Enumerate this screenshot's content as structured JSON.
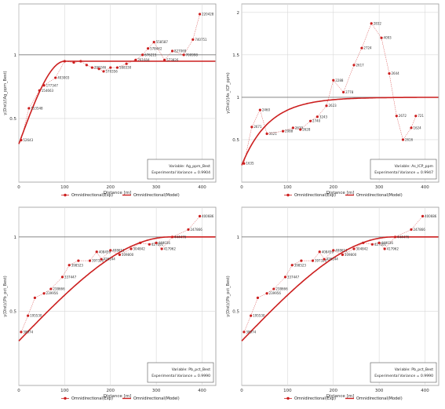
{
  "colors": {
    "series": "#cc1f1f",
    "grid": "#d8d8d8",
    "ref": "#7a7a7a",
    "axis": "#333333"
  },
  "legend": {
    "exp_label": "Omnidirectional(Exp)",
    "model_label": "Omnidirectional(Model)"
  },
  "chart_data": [
    {
      "type": "scatter",
      "xlabel": "Distance [m]",
      "ylabel": "γ(Dist)/(Ag_ppm_Best)",
      "xlim": [
        0,
        430
      ],
      "ylim": [
        0,
        1.4
      ],
      "xticks": [
        0,
        100,
        200,
        300,
        400
      ],
      "yticks": [
        {
          "v": 0.5,
          "label": "0.5"
        },
        {
          "v": 1,
          "label": "1"
        }
      ],
      "sill": 0.95,
      "ref_line": 1.0,
      "model": {
        "nugget": 0.3,
        "sill": 0.95,
        "range": 100,
        "shape": "spherical"
      },
      "info": {
        "variable": "Variable: Ag_ppm_Best",
        "variance": "Experimental Variance = 0.9904"
      },
      "points": [
        {
          "x": 5,
          "y": 0.33,
          "label": "52643"
        },
        {
          "x": 22,
          "y": 0.58,
          "label": "153548"
        },
        {
          "x": 45,
          "y": 0.72,
          "label": "154663"
        },
        {
          "x": 55,
          "y": 0.76,
          "label": "177347"
        },
        {
          "x": 80,
          "y": 0.82,
          "label": "403003"
        },
        {
          "x": 100,
          "y": 0.95,
          "label": ""
        },
        {
          "x": 120,
          "y": 0.94,
          "label": ""
        },
        {
          "x": 135,
          "y": 0.95,
          "label": ""
        },
        {
          "x": 148,
          "y": 0.92,
          "label": ""
        },
        {
          "x": 160,
          "y": 0.9,
          "label": "290246"
        },
        {
          "x": 175,
          "y": 0.89,
          "label": ""
        },
        {
          "x": 185,
          "y": 0.87,
          "label": "570356"
        },
        {
          "x": 200,
          "y": 0.9,
          "label": ""
        },
        {
          "x": 215,
          "y": 0.9,
          "label": "588330"
        },
        {
          "x": 235,
          "y": 0.93,
          "label": ""
        },
        {
          "x": 255,
          "y": 0.96,
          "label": "761604"
        },
        {
          "x": 270,
          "y": 1.0,
          "label": "676215"
        },
        {
          "x": 282,
          "y": 1.05,
          "label": "578442"
        },
        {
          "x": 295,
          "y": 1.1,
          "label": "558587"
        },
        {
          "x": 318,
          "y": 0.96,
          "label": "573826"
        },
        {
          "x": 335,
          "y": 1.03,
          "label": "827069"
        },
        {
          "x": 360,
          "y": 1.0,
          "label": "700998"
        },
        {
          "x": 380,
          "y": 1.12,
          "label": "740751"
        },
        {
          "x": 395,
          "y": 1.32,
          "label": "220428"
        }
      ]
    },
    {
      "type": "scatter",
      "xlabel": "Distance [m]",
      "ylabel": "γ(Dist)/(As_ICP_ppm)",
      "xlim": [
        0,
        430
      ],
      "ylim": [
        0,
        2.1
      ],
      "xticks": [
        0,
        100,
        200,
        300,
        400
      ],
      "yticks": [
        {
          "v": 0.5,
          "label": "0.5"
        },
        {
          "v": 1,
          "label": "1"
        },
        {
          "v": 1.5,
          "label": "1.5"
        },
        {
          "v": 2,
          "label": "2"
        }
      ],
      "sill": 1.0,
      "ref_line": 1.0,
      "model": {
        "nugget": 0.2,
        "sill": 1.0,
        "range": 180,
        "shape": "exponential"
      },
      "info": {
        "variable": "Variable: As_ICP_ppm",
        "variance": "Experimental Variance = 0.9947"
      },
      "points": [
        {
          "x": 5,
          "y": 0.22,
          "label": "1635"
        },
        {
          "x": 22,
          "y": 0.65,
          "label": "2671"
        },
        {
          "x": 40,
          "y": 0.85,
          "label": "2460"
        },
        {
          "x": 55,
          "y": 0.57,
          "label": "3121"
        },
        {
          "x": 90,
          "y": 0.6,
          "label": "2088"
        },
        {
          "x": 112,
          "y": 0.64,
          "label": "2620"
        },
        {
          "x": 128,
          "y": 0.62,
          "label": "2628"
        },
        {
          "x": 150,
          "y": 0.72,
          "label": "2740"
        },
        {
          "x": 165,
          "y": 0.77,
          "label": "3243"
        },
        {
          "x": 185,
          "y": 0.9,
          "label": "2623"
        },
        {
          "x": 200,
          "y": 1.2,
          "label": "2288"
        },
        {
          "x": 222,
          "y": 1.06,
          "label": "2778"
        },
        {
          "x": 245,
          "y": 1.38,
          "label": "2617"
        },
        {
          "x": 262,
          "y": 1.58,
          "label": "2724"
        },
        {
          "x": 283,
          "y": 1.87,
          "label": "2832"
        },
        {
          "x": 305,
          "y": 1.7,
          "label": "4093"
        },
        {
          "x": 322,
          "y": 1.28,
          "label": "2644"
        },
        {
          "x": 338,
          "y": 0.78,
          "label": "2672"
        },
        {
          "x": 352,
          "y": 0.5,
          "label": "2616"
        },
        {
          "x": 370,
          "y": 0.64,
          "label": "1624"
        },
        {
          "x": 380,
          "y": 0.78,
          "label": "721"
        }
      ]
    },
    {
      "type": "scatter",
      "xlabel": "Distance [m]",
      "ylabel": "γ(Dist)/(Pb_pct_Best)",
      "xlim": [
        0,
        430
      ],
      "ylim": [
        0,
        1.2
      ],
      "xticks": [
        0,
        100,
        200,
        300,
        400
      ],
      "yticks": [
        {
          "v": 0.5,
          "label": "0.5"
        },
        {
          "v": 1,
          "label": "1"
        }
      ],
      "sill": 1.0,
      "ref_line": 1.0,
      "model": {
        "nugget": 0.3,
        "sill": 1.0,
        "range": 330,
        "shape": "spherical"
      },
      "info": {
        "variable": "Variable: Pb_pct_Best",
        "variance": "Experimental Variance = 0.9990"
      },
      "points": [
        {
          "x": 5,
          "y": 0.36,
          "label": "38974"
        },
        {
          "x": 20,
          "y": 0.47,
          "label": "195530"
        },
        {
          "x": 35,
          "y": 0.59,
          "label": ""
        },
        {
          "x": 55,
          "y": 0.62,
          "label": "239956"
        },
        {
          "x": 70,
          "y": 0.65,
          "label": "238666"
        },
        {
          "x": 95,
          "y": 0.73,
          "label": "337447"
        },
        {
          "x": 110,
          "y": 0.81,
          "label": "398523"
        },
        {
          "x": 130,
          "y": 0.84,
          "label": ""
        },
        {
          "x": 155,
          "y": 0.84,
          "label": "397320"
        },
        {
          "x": 170,
          "y": 0.9,
          "label": "408459"
        },
        {
          "x": 180,
          "y": 0.85,
          "label": "426144"
        },
        {
          "x": 200,
          "y": 0.91,
          "label": "408611"
        },
        {
          "x": 220,
          "y": 0.88,
          "label": "309800"
        },
        {
          "x": 245,
          "y": 0.92,
          "label": "304842"
        },
        {
          "x": 265,
          "y": 0.96,
          "label": ""
        },
        {
          "x": 285,
          "y": 0.95,
          "label": "427101"
        },
        {
          "x": 300,
          "y": 0.96,
          "label": "449036"
        },
        {
          "x": 312,
          "y": 0.92,
          "label": "417962"
        },
        {
          "x": 335,
          "y": 1.0,
          "label": "444476"
        },
        {
          "x": 370,
          "y": 1.05,
          "label": "247866"
        },
        {
          "x": 395,
          "y": 1.14,
          "label": "400686"
        }
      ]
    },
    {
      "type": "scatter",
      "xlabel": "Distance [m]",
      "ylabel": "γ(Dist)/(Pb_pct_Best)",
      "xlim": [
        0,
        430
      ],
      "ylim": [
        0,
        1.2
      ],
      "xticks": [
        0,
        100,
        200,
        300,
        400
      ],
      "yticks": [
        {
          "v": 0.5,
          "label": "0.5"
        },
        {
          "v": 1,
          "label": "1"
        }
      ],
      "sill": 1.0,
      "ref_line": 1.0,
      "model": {
        "nugget": 0.3,
        "sill": 1.0,
        "range": 330,
        "shape": "spherical"
      },
      "info": {
        "variable": "Variable: Pb_pct_Best",
        "variance": "Experimental Variance = 0.9990"
      },
      "points": [
        {
          "x": 5,
          "y": 0.36,
          "label": "38974"
        },
        {
          "x": 20,
          "y": 0.47,
          "label": "195530"
        },
        {
          "x": 35,
          "y": 0.59,
          "label": ""
        },
        {
          "x": 55,
          "y": 0.62,
          "label": "239956"
        },
        {
          "x": 70,
          "y": 0.65,
          "label": "238666"
        },
        {
          "x": 95,
          "y": 0.73,
          "label": "337447"
        },
        {
          "x": 110,
          "y": 0.81,
          "label": "398523"
        },
        {
          "x": 130,
          "y": 0.84,
          "label": ""
        },
        {
          "x": 155,
          "y": 0.84,
          "label": "397320"
        },
        {
          "x": 170,
          "y": 0.9,
          "label": "408459"
        },
        {
          "x": 180,
          "y": 0.85,
          "label": "426144"
        },
        {
          "x": 200,
          "y": 0.91,
          "label": "408611"
        },
        {
          "x": 220,
          "y": 0.88,
          "label": "309800"
        },
        {
          "x": 245,
          "y": 0.92,
          "label": "304842"
        },
        {
          "x": 265,
          "y": 0.96,
          "label": ""
        },
        {
          "x": 285,
          "y": 0.95,
          "label": "427101"
        },
        {
          "x": 300,
          "y": 0.96,
          "label": "449036"
        },
        {
          "x": 312,
          "y": 0.92,
          "label": "417962"
        },
        {
          "x": 335,
          "y": 1.0,
          "label": "444476"
        },
        {
          "x": 370,
          "y": 1.05,
          "label": "247866"
        },
        {
          "x": 395,
          "y": 1.14,
          "label": "400686"
        }
      ]
    }
  ]
}
